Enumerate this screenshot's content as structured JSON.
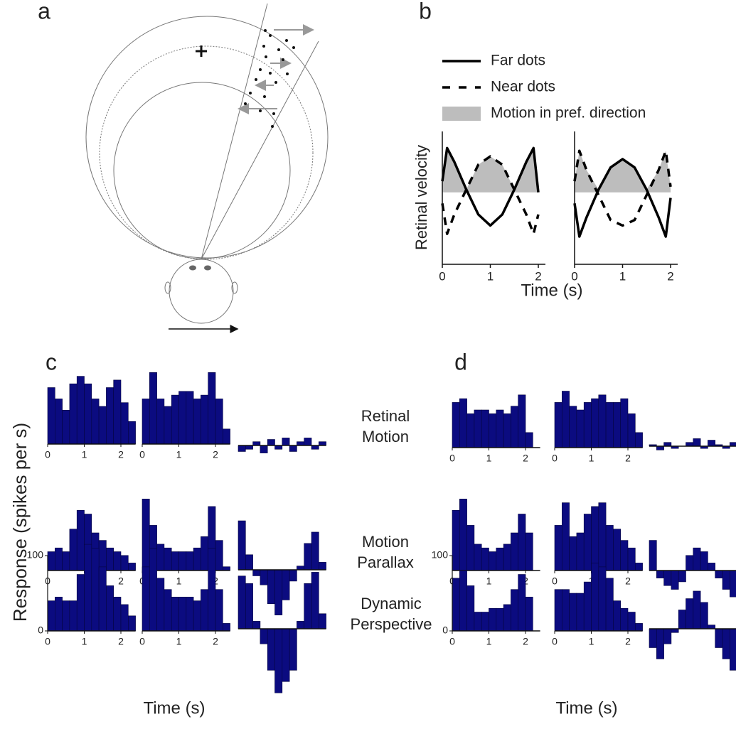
{
  "figure": {
    "panel_labels": [
      "a",
      "b",
      "c",
      "d"
    ],
    "row_labels": [
      [
        "Retinal",
        "Motion"
      ],
      [
        "Motion",
        "Parallax"
      ],
      [
        "Dynamic",
        "Perspective"
      ]
    ],
    "response_label": "Response (spikes per s)"
  },
  "chart_data": [
    {
      "type": "line",
      "ylabel": "Retinal velocity",
      "xlabel": "Time (s)",
      "x": [
        0,
        0.1,
        0.25,
        0.5,
        0.75,
        1,
        1.25,
        1.5,
        1.75,
        1.9,
        2
      ],
      "xlim": [
        0,
        2
      ],
      "xticks": [
        0,
        1,
        2
      ],
      "ylim": [
        -1.3,
        1.1
      ],
      "shading": {
        "name": "Motion in pref. direction",
        "color": "#bdbdbd"
      },
      "series": [
        {
          "name": "Far dots",
          "color": "#000000",
          "dash": false,
          "values": [
            0.2,
            0.8,
            0.55,
            0.05,
            -0.4,
            -0.6,
            -0.4,
            0.05,
            0.55,
            0.8,
            0.0
          ]
        },
        {
          "name": "Near dots",
          "color": "#000000",
          "dash": true,
          "values": [
            -0.2,
            -0.75,
            -0.4,
            0.05,
            0.5,
            0.65,
            0.5,
            0.05,
            -0.4,
            -0.75,
            -0.4
          ]
        }
      ]
    },
    {
      "type": "line",
      "x": [
        0,
        0.1,
        0.25,
        0.5,
        0.75,
        1,
        1.25,
        1.5,
        1.75,
        1.9,
        2
      ],
      "xlim": [
        0,
        2
      ],
      "xticks": [
        0,
        1,
        2
      ],
      "ylim": [
        -1.3,
        1.1
      ],
      "shading": {
        "color": "#bdbdbd"
      },
      "series": [
        {
          "color": "#000000",
          "dash": false,
          "values": [
            -0.2,
            -0.8,
            -0.45,
            0.05,
            0.45,
            0.6,
            0.45,
            0.05,
            -0.45,
            -0.8,
            -0.1
          ]
        },
        {
          "color": "#000000",
          "dash": true,
          "values": [
            0.2,
            0.75,
            0.4,
            -0.05,
            -0.5,
            -0.6,
            -0.5,
            -0.05,
            0.4,
            0.75,
            0.1
          ]
        }
      ]
    },
    {
      "type": "histogram",
      "bins": [
        0,
        0.2,
        0.4,
        0.6,
        0.8,
        1,
        1.2,
        1.4,
        1.6,
        1.8,
        2,
        2.2,
        2.4
      ],
      "values": [
        75,
        60,
        45,
        80,
        90,
        80,
        60,
        50,
        75,
        85,
        55,
        30
      ],
      "color": "#0b0b80",
      "xlim": [
        0,
        2.4
      ],
      "ylim": [
        0,
        150
      ],
      "xticks": [
        0,
        1,
        2
      ]
    },
    {
      "type": "histogram",
      "bins": [
        0,
        0.2,
        0.4,
        0.6,
        0.8,
        1,
        1.2,
        1.4,
        1.6,
        1.8,
        2,
        2.2,
        2.4
      ],
      "values": [
        60,
        95,
        60,
        50,
        65,
        70,
        70,
        60,
        65,
        95,
        60,
        20
      ],
      "color": "#0b0b80",
      "xlim": [
        0,
        2.4
      ],
      "ylim": [
        0,
        150
      ],
      "xticks": [
        0,
        1,
        2
      ]
    },
    {
      "type": "histogram",
      "bins": [
        0,
        0.2,
        0.4,
        0.6,
        0.8,
        1,
        1.2,
        1.4,
        1.6,
        1.8,
        2,
        2.2,
        2.4
      ],
      "values": [
        -8,
        -5,
        5,
        -10,
        8,
        -5,
        10,
        -8,
        5,
        10,
        -5,
        5
      ],
      "color": "#0b0b80",
      "xlim": [
        0,
        2.4
      ],
      "ylim": [
        -90,
        90
      ]
    },
    {
      "type": "histogram",
      "bins": [
        0,
        0.2,
        0.4,
        0.6,
        0.8,
        1,
        1.2,
        1.4,
        1.6,
        1.8,
        2,
        2.2,
        2.4
      ],
      "values": [
        25,
        30,
        25,
        55,
        80,
        75,
        50,
        40,
        30,
        25,
        20,
        10
      ],
      "color": "#0b0b80",
      "xlim": [
        0,
        2.4
      ],
      "ylim": [
        0,
        150
      ],
      "xticks": [
        0,
        1,
        2
      ]
    },
    {
      "type": "histogram",
      "bins": [
        0,
        0.2,
        0.4,
        0.6,
        0.8,
        1,
        1.2,
        1.4,
        1.6,
        1.8,
        2,
        2.2,
        2.4
      ],
      "values": [
        95,
        60,
        35,
        30,
        25,
        25,
        25,
        30,
        45,
        85,
        40,
        5
      ],
      "color": "#0b0b80",
      "xlim": [
        0,
        2.4
      ],
      "ylim": [
        0,
        150
      ],
      "xticks": [
        0,
        1,
        2
      ]
    },
    {
      "type": "histogram",
      "bins": [
        0,
        0.2,
        0.4,
        0.6,
        0.8,
        1,
        1.2,
        1.4,
        1.6,
        1.8,
        2,
        2.2,
        2.4
      ],
      "values": [
        65,
        20,
        -8,
        -20,
        -45,
        -60,
        -40,
        -15,
        5,
        35,
        50,
        10
      ],
      "color": "#0b0b80",
      "xlim": [
        0,
        2.4
      ],
      "ylim": [
        -90,
        90
      ]
    },
    {
      "type": "histogram",
      "bins": [
        0,
        0.2,
        0.4,
        0.6,
        0.8,
        1,
        1.2,
        1.4,
        1.6,
        1.8,
        2,
        2.2,
        2.4
      ],
      "values": [
        40,
        45,
        40,
        40,
        75,
        115,
        110,
        85,
        60,
        45,
        35,
        20
      ],
      "color": "#0b0b80",
      "xlim": [
        0,
        2.4
      ],
      "ylim": [
        0,
        150
      ],
      "xticks": [
        0,
        1,
        2
      ],
      "yticks": [
        0,
        100
      ]
    },
    {
      "type": "histogram",
      "bins": [
        0,
        0.2,
        0.4,
        0.6,
        0.8,
        1,
        1.2,
        1.4,
        1.6,
        1.8,
        2,
        2.2,
        2.4
      ],
      "values": [
        85,
        110,
        70,
        55,
        45,
        45,
        45,
        40,
        55,
        110,
        55,
        10
      ],
      "color": "#0b0b80",
      "xlim": [
        0,
        2.4
      ],
      "ylim": [
        0,
        150
      ],
      "xticks": [
        0,
        1,
        2
      ],
      "xlabel": "Time (s)"
    },
    {
      "type": "histogram",
      "bins": [
        0,
        0.2,
        0.4,
        0.6,
        0.8,
        1,
        1.2,
        1.4,
        1.6,
        1.8,
        2,
        2.2,
        2.4
      ],
      "values": [
        70,
        60,
        10,
        -20,
        -55,
        -85,
        -70,
        -55,
        10,
        60,
        75,
        20
      ],
      "color": "#0b0b80",
      "xlim": [
        0,
        2.4
      ],
      "ylim": [
        -90,
        90
      ]
    },
    {
      "type": "histogram",
      "bins": [
        0,
        0.2,
        0.4,
        0.6,
        0.8,
        1,
        1.2,
        1.4,
        1.6,
        1.8,
        2,
        2.2,
        2.4
      ],
      "values": [
        60,
        65,
        45,
        50,
        50,
        45,
        50,
        45,
        55,
        70,
        20,
        0
      ],
      "color": "#0b0b80",
      "xlim": [
        0,
        2.4
      ],
      "ylim": [
        0,
        150
      ],
      "xticks": [
        0,
        1,
        2
      ]
    },
    {
      "type": "histogram",
      "bins": [
        0,
        0.2,
        0.4,
        0.6,
        0.8,
        1,
        1.2,
        1.4,
        1.6,
        1.8,
        2,
        2.2,
        2.4
      ],
      "values": [
        60,
        75,
        55,
        50,
        60,
        65,
        70,
        60,
        60,
        65,
        45,
        20
      ],
      "color": "#0b0b80",
      "xlim": [
        0,
        2.4
      ],
      "ylim": [
        0,
        150
      ],
      "xticks": [
        0,
        1,
        2
      ]
    },
    {
      "type": "histogram",
      "bins": [
        0,
        0.2,
        0.4,
        0.6,
        0.8,
        1,
        1.2,
        1.4,
        1.6,
        1.8,
        2,
        2.2,
        2.4
      ],
      "values": [
        2,
        -5,
        5,
        -3,
        0,
        5,
        10,
        -3,
        8,
        2,
        -3,
        5
      ],
      "color": "#0b0b80",
      "xlim": [
        0,
        2.4
      ],
      "ylim": [
        -90,
        90
      ]
    },
    {
      "type": "histogram",
      "bins": [
        0,
        0.2,
        0.4,
        0.6,
        0.8,
        1,
        1.2,
        1.4,
        1.6,
        1.8,
        2,
        2.2,
        2.4
      ],
      "values": [
        80,
        95,
        60,
        35,
        30,
        25,
        30,
        35,
        50,
        75,
        50,
        0
      ],
      "color": "#0b0b80",
      "xlim": [
        0,
        2.4
      ],
      "ylim": [
        0,
        150
      ],
      "xticks": [
        0,
        1,
        2
      ]
    },
    {
      "type": "histogram",
      "bins": [
        0,
        0.2,
        0.4,
        0.6,
        0.8,
        1,
        1.2,
        1.4,
        1.6,
        1.8,
        2,
        2.2,
        2.4
      ],
      "values": [
        60,
        90,
        45,
        50,
        75,
        85,
        90,
        60,
        55,
        40,
        30,
        10
      ],
      "color": "#0b0b80",
      "xlim": [
        0,
        2.4
      ],
      "ylim": [
        0,
        150
      ],
      "xticks": [
        0,
        1,
        2
      ]
    },
    {
      "type": "histogram",
      "bins": [
        0,
        0.2,
        0.4,
        0.6,
        0.8,
        1,
        1.2,
        1.4,
        1.6,
        1.8,
        2,
        2.2,
        2.4
      ],
      "values": [
        40,
        -10,
        -20,
        -25,
        -15,
        20,
        30,
        25,
        10,
        -10,
        -25,
        -35
      ],
      "color": "#0b0b80",
      "xlim": [
        0,
        2.4
      ],
      "ylim": [
        -90,
        90
      ]
    },
    {
      "type": "histogram",
      "bins": [
        0,
        0.2,
        0.4,
        0.6,
        0.8,
        1,
        1.2,
        1.4,
        1.6,
        1.8,
        2,
        2.2,
        2.4
      ],
      "values": [
        70,
        80,
        60,
        25,
        25,
        30,
        30,
        35,
        55,
        75,
        45,
        0
      ],
      "color": "#0b0b80",
      "xlim": [
        0,
        2.4
      ],
      "ylim": [
        0,
        150
      ],
      "xticks": [
        0,
        1,
        2
      ],
      "yticks": [
        0,
        100
      ]
    },
    {
      "type": "histogram",
      "bins": [
        0,
        0.2,
        0.4,
        0.6,
        0.8,
        1,
        1.2,
        1.4,
        1.6,
        1.8,
        2,
        2.2,
        2.4
      ],
      "values": [
        55,
        55,
        50,
        50,
        65,
        90,
        85,
        70,
        40,
        30,
        25,
        10
      ],
      "color": "#0b0b80",
      "xlim": [
        0,
        2.4
      ],
      "ylim": [
        0,
        150
      ],
      "xticks": [
        0,
        1,
        2
      ],
      "xlabel": "Time (s)"
    },
    {
      "type": "histogram",
      "bins": [
        0,
        0.2,
        0.4,
        0.6,
        0.8,
        1,
        1.2,
        1.4,
        1.6,
        1.8,
        2,
        2.2,
        2.4
      ],
      "values": [
        -25,
        -40,
        -20,
        -5,
        25,
        40,
        50,
        35,
        5,
        -25,
        -40,
        -55
      ],
      "color": "#0b0b80",
      "xlim": [
        0,
        2.4
      ],
      "ylim": [
        -90,
        90
      ]
    }
  ]
}
